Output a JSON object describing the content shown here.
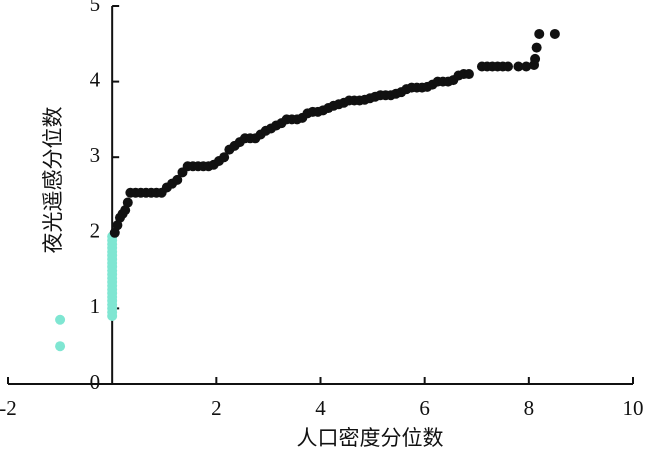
{
  "chart_data": {
    "type": "scatter",
    "xlabel": "人口密度分位数",
    "ylabel": "夜光遥感分位数",
    "xlim": [
      -2,
      10
    ],
    "ylim": [
      0,
      5
    ],
    "xticks": [
      -2,
      2,
      4,
      6,
      8,
      10
    ],
    "yticks": [
      0,
      1,
      2,
      3,
      4,
      5
    ],
    "grid": false,
    "series": [
      {
        "color": "#7fe6d2",
        "x": [
          0,
          0,
          0,
          0,
          0,
          0,
          0,
          0,
          0,
          0,
          0,
          0,
          0,
          0,
          0,
          0,
          0,
          0,
          0,
          0,
          0,
          0,
          -1,
          -1
        ],
        "values": [
          0.9,
          0.95,
          1.0,
          1.05,
          1.1,
          1.15,
          1.2,
          1.25,
          1.3,
          1.35,
          1.4,
          1.45,
          1.5,
          1.55,
          1.6,
          1.65,
          1.7,
          1.75,
          1.8,
          1.85,
          1.9,
          1.95,
          0.85,
          0.5
        ]
      },
      {
        "color": "#111111",
        "x": [
          0.05,
          0.1,
          0.15,
          0.2,
          0.25,
          0.3,
          0.35,
          0.45,
          0.55,
          0.65,
          0.75,
          0.85,
          0.95,
          1.05,
          1.15,
          1.25,
          1.35,
          1.45,
          1.55,
          1.65,
          1.75,
          1.85,
          1.95,
          2.05,
          2.15,
          2.25,
          2.35,
          2.45,
          2.55,
          2.65,
          2.75,
          2.85,
          2.95,
          3.05,
          3.15,
          3.25,
          3.35,
          3.45,
          3.55,
          3.65,
          3.75,
          3.85,
          3.95,
          4.05,
          4.15,
          4.25,
          4.35,
          4.45,
          4.55,
          4.65,
          4.75,
          4.85,
          4.95,
          5.05,
          5.15,
          5.25,
          5.35,
          5.45,
          5.55,
          5.65,
          5.75,
          5.85,
          5.95,
          6.05,
          6.15,
          6.25,
          6.35,
          6.45,
          6.55,
          6.65,
          6.75,
          6.85,
          7.1,
          7.2,
          7.3,
          7.4,
          7.5,
          7.6,
          7.8,
          7.95,
          8.1,
          8.12,
          8.15,
          8.2,
          8.5
        ],
        "values": [
          2.0,
          2.1,
          2.2,
          2.25,
          2.3,
          2.4,
          2.53,
          2.53,
          2.53,
          2.53,
          2.53,
          2.53,
          2.53,
          2.6,
          2.65,
          2.7,
          2.8,
          2.88,
          2.88,
          2.88,
          2.88,
          2.88,
          2.9,
          2.95,
          3.0,
          3.1,
          3.15,
          3.2,
          3.25,
          3.25,
          3.25,
          3.3,
          3.35,
          3.38,
          3.42,
          3.45,
          3.5,
          3.5,
          3.5,
          3.52,
          3.58,
          3.6,
          3.6,
          3.62,
          3.65,
          3.68,
          3.7,
          3.72,
          3.75,
          3.75,
          3.75,
          3.76,
          3.78,
          3.8,
          3.82,
          3.82,
          3.82,
          3.84,
          3.86,
          3.9,
          3.92,
          3.92,
          3.92,
          3.93,
          3.96,
          4.0,
          4.0,
          4.0,
          4.02,
          4.08,
          4.1,
          4.1,
          4.2,
          4.2,
          4.2,
          4.2,
          4.2,
          4.2,
          4.2,
          4.2,
          4.22,
          4.3,
          4.45,
          4.63,
          4.63
        ]
      }
    ]
  }
}
